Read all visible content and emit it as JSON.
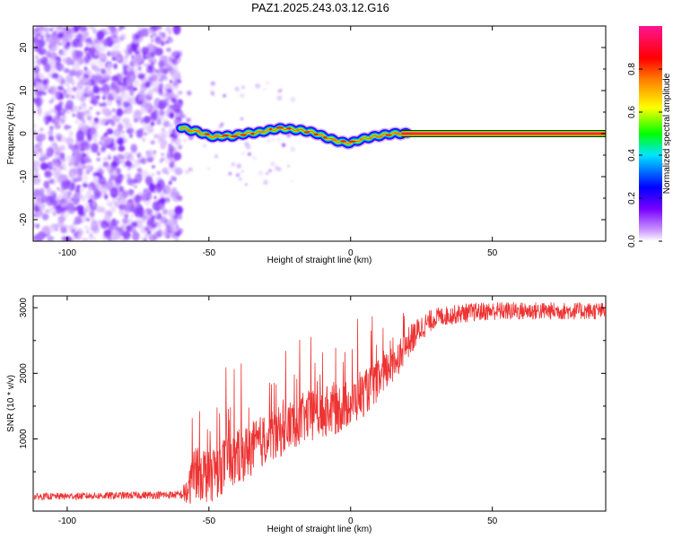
{
  "title": "PAZ1.2025.243.03.12.G16",
  "chart_data": [
    {
      "type": "heatmap",
      "panel": "spectrogram",
      "xlabel": "Height of straight line (km)",
      "ylabel": "Frequency (Hz)",
      "xlim": [
        -112,
        90
      ],
      "ylim": [
        -25,
        25
      ],
      "xticks": [
        -100,
        -50,
        0,
        50
      ],
      "xtick_labels": [
        "-100",
        "-50",
        "0",
        "50"
      ],
      "yticks": [
        -20,
        -10,
        0,
        10,
        20
      ],
      "ytick_labels": [
        "-20",
        "-10",
        "0",
        "10",
        "20"
      ],
      "noise_region_x": [
        -112,
        -60
      ],
      "signal_track": {
        "x": [
          -60,
          -57,
          -54,
          -51,
          -48,
          -45,
          -42,
          -39,
          -36,
          -33,
          -30,
          -27,
          -24,
          -21,
          -18,
          -15,
          -12,
          -9,
          -6,
          -3,
          0,
          3,
          6,
          9,
          12,
          15,
          18,
          90
        ],
        "freq": [
          1.5,
          0.8,
          0.5,
          -0.3,
          -0.8,
          -0.5,
          -0.6,
          -0.2,
          0.1,
          0.2,
          0.6,
          1.0,
          1.2,
          1.0,
          0.8,
          0.5,
          0.0,
          -0.8,
          -1.5,
          -2.0,
          -2.2,
          -1.5,
          -1.0,
          -0.6,
          -0.3,
          0.0,
          0.0,
          0.0
        ]
      },
      "colorbar": {
        "label": "Normalized spectral amplitude",
        "ticks": [
          0.0,
          0.2,
          0.4,
          0.6,
          0.8
        ],
        "tick_labels": [
          "0.0",
          "0.2",
          "0.4",
          "0.6",
          "0.8"
        ],
        "colors": [
          "#ffffff",
          "#cc99ff",
          "#7700ff",
          "#0000ff",
          "#00e5ff",
          "#00ff00",
          "#ffff00",
          "#ff7f00",
          "#ff0000",
          "#ff1493"
        ]
      }
    },
    {
      "type": "line",
      "panel": "snr",
      "xlabel": "Height of straight line (km)",
      "ylabel": "SNR (10 * v/v)",
      "xlim": [
        -112,
        90
      ],
      "ylim": [
        -100,
        3180
      ],
      "xticks": [
        -100,
        -50,
        0,
        50
      ],
      "xtick_labels": [
        "-100",
        "-50",
        "0",
        "50"
      ],
      "yticks": [
        1000,
        2000,
        3000
      ],
      "ytick_labels": [
        "1000",
        "2000",
        "3000"
      ],
      "color": "#ee3333",
      "trend": {
        "x": [
          -112,
          -60,
          -57,
          -55,
          -50,
          -45,
          -40,
          -35,
          -30,
          -25,
          -20,
          -15,
          -10,
          -5,
          0,
          5,
          10,
          15,
          20,
          25,
          30,
          40,
          50,
          60,
          70,
          80,
          90
        ],
        "y": [
          120,
          150,
          200,
          550,
          450,
          600,
          700,
          850,
          1000,
          1100,
          1250,
          1350,
          1400,
          1450,
          1550,
          1700,
          1900,
          2150,
          2450,
          2700,
          2850,
          2920,
          2950,
          2950,
          2950,
          2950,
          2950
        ]
      },
      "noise_amplitude": {
        "x": [
          -112,
          -60,
          -55,
          -30,
          0,
          20,
          30,
          90
        ],
        "y": [
          50,
          60,
          450,
          400,
          380,
          250,
          150,
          130
        ]
      }
    }
  ]
}
